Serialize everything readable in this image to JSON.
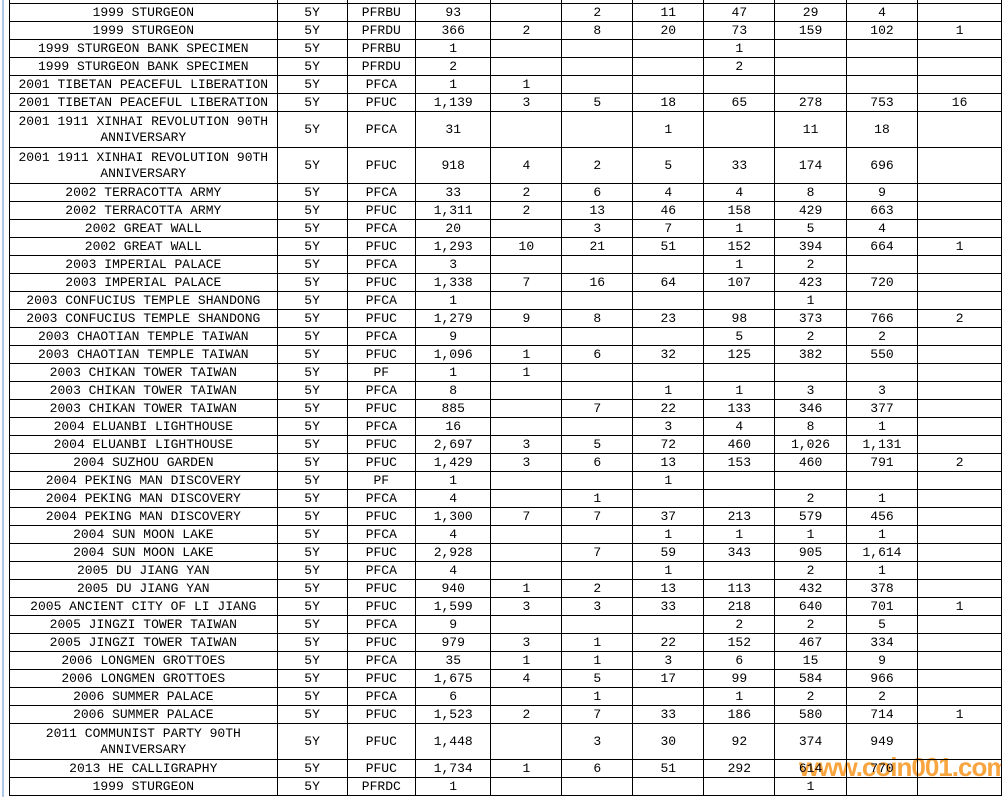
{
  "sheet": {
    "background": "#ffffff",
    "table_border_color": "#000000",
    "gridline_color": "#aec6e8",
    "text_color": "#000000"
  },
  "watermark": {
    "text": "www.coin001.com",
    "color": "#f7941d"
  },
  "table": {
    "rows": [
      {
        "name": "1999 STURGEON",
        "denom": "5Y",
        "grade": "PFRBU",
        "cells": [
          "93",
          "",
          "2",
          "11",
          "47",
          "29",
          "4",
          ""
        ]
      },
      {
        "name": "1999 STURGEON",
        "denom": "5Y",
        "grade": "PFRDU",
        "cells": [
          "366",
          "2",
          "8",
          "20",
          "73",
          "159",
          "102",
          "1"
        ]
      },
      {
        "name": "1999 STURGEON BANK SPECIMEN",
        "denom": "5Y",
        "grade": "PFRBU",
        "cells": [
          "1",
          "",
          "",
          "",
          "1",
          "",
          "",
          ""
        ]
      },
      {
        "name": "1999 STURGEON BANK SPECIMEN",
        "denom": "5Y",
        "grade": "PFRDU",
        "cells": [
          "2",
          "",
          "",
          "",
          "2",
          "",
          "",
          ""
        ]
      },
      {
        "name": "2001 TIBETAN PEACEFUL LIBERATION",
        "denom": "5Y",
        "grade": "PFCA",
        "cells": [
          "1",
          "1",
          "",
          "",
          "",
          "",
          "",
          ""
        ]
      },
      {
        "name": "2001 TIBETAN PEACEFUL LIBERATION",
        "denom": "5Y",
        "grade": "PFUC",
        "cells": [
          "1,139",
          "3",
          "5",
          "18",
          "65",
          "278",
          "753",
          "16"
        ]
      },
      {
        "name": "2001 1911 XINHAI REVOLUTION 90TH ANNIVERSARY",
        "denom": "5Y",
        "grade": "PFCA",
        "tall": true,
        "cells": [
          "31",
          "",
          "",
          "1",
          "",
          "11",
          "18",
          ""
        ]
      },
      {
        "name": "2001 1911 XINHAI REVOLUTION 90TH ANNIVERSARY",
        "denom": "5Y",
        "grade": "PFUC",
        "tall": true,
        "cells": [
          "918",
          "4",
          "2",
          "5",
          "33",
          "174",
          "696",
          ""
        ]
      },
      {
        "name": "2002 TERRACOTTA ARMY",
        "denom": "5Y",
        "grade": "PFCA",
        "cells": [
          "33",
          "2",
          "6",
          "4",
          "4",
          "8",
          "9",
          ""
        ]
      },
      {
        "name": "2002 TERRACOTTA ARMY",
        "denom": "5Y",
        "grade": "PFUC",
        "cells": [
          "1,311",
          "2",
          "13",
          "46",
          "158",
          "429",
          "663",
          ""
        ]
      },
      {
        "name": "2002 GREAT WALL",
        "denom": "5Y",
        "grade": "PFCA",
        "cells": [
          "20",
          "",
          "3",
          "7",
          "1",
          "5",
          "4",
          ""
        ]
      },
      {
        "name": "2002 GREAT WALL",
        "denom": "5Y",
        "grade": "PFUC",
        "cells": [
          "1,293",
          "10",
          "21",
          "51",
          "152",
          "394",
          "664",
          "1"
        ]
      },
      {
        "name": "2003 IMPERIAL PALACE",
        "denom": "5Y",
        "grade": "PFCA",
        "cells": [
          "3",
          "",
          "",
          "",
          "1",
          "2",
          "",
          ""
        ]
      },
      {
        "name": "2003 IMPERIAL PALACE",
        "denom": "5Y",
        "grade": "PFUC",
        "cells": [
          "1,338",
          "7",
          "16",
          "64",
          "107",
          "423",
          "720",
          ""
        ]
      },
      {
        "name": "2003 CONFUCIUS TEMPLE SHANDONG",
        "denom": "5Y",
        "grade": "PFCA",
        "cells": [
          "1",
          "",
          "",
          "",
          "",
          "1",
          "",
          ""
        ]
      },
      {
        "name": "2003 CONFUCIUS TEMPLE SHANDONG",
        "denom": "5Y",
        "grade": "PFUC",
        "cells": [
          "1,279",
          "9",
          "8",
          "23",
          "98",
          "373",
          "766",
          "2"
        ]
      },
      {
        "name": "2003 CHAOTIAN TEMPLE TAIWAN",
        "denom": "5Y",
        "grade": "PFCA",
        "cells": [
          "9",
          "",
          "",
          "",
          "5",
          "2",
          "2",
          ""
        ]
      },
      {
        "name": "2003 CHAOTIAN TEMPLE TAIWAN",
        "denom": "5Y",
        "grade": "PFUC",
        "cells": [
          "1,096",
          "1",
          "6",
          "32",
          "125",
          "382",
          "550",
          ""
        ]
      },
      {
        "name": "2003 CHIKAN TOWER TAIWAN",
        "denom": "5Y",
        "grade": "PF",
        "cells": [
          "1",
          "1",
          "",
          "",
          "",
          "",
          "",
          ""
        ]
      },
      {
        "name": "2003 CHIKAN TOWER TAIWAN",
        "denom": "5Y",
        "grade": "PFCA",
        "cells": [
          "8",
          "",
          "",
          "1",
          "1",
          "3",
          "3",
          ""
        ]
      },
      {
        "name": "2003 CHIKAN TOWER TAIWAN",
        "denom": "5Y",
        "grade": "PFUC",
        "cells": [
          "885",
          "",
          "7",
          "22",
          "133",
          "346",
          "377",
          ""
        ]
      },
      {
        "name": "2004 ELUANBI LIGHTHOUSE",
        "denom": "5Y",
        "grade": "PFCA",
        "cells": [
          "16",
          "",
          "",
          "3",
          "4",
          "8",
          "1",
          ""
        ]
      },
      {
        "name": "2004 ELUANBI LIGHTHOUSE",
        "denom": "5Y",
        "grade": "PFUC",
        "cells": [
          "2,697",
          "3",
          "5",
          "72",
          "460",
          "1,026",
          "1,131",
          ""
        ]
      },
      {
        "name": "2004 SUZHOU GARDEN",
        "denom": "5Y",
        "grade": "PFUC",
        "cells": [
          "1,429",
          "3",
          "6",
          "13",
          "153",
          "460",
          "791",
          "2"
        ]
      },
      {
        "name": "2004 PEKING MAN DISCOVERY",
        "denom": "5Y",
        "grade": "PF",
        "cells": [
          "1",
          "",
          "",
          "1",
          "",
          "",
          "",
          ""
        ]
      },
      {
        "name": "2004 PEKING MAN DISCOVERY",
        "denom": "5Y",
        "grade": "PFCA",
        "cells": [
          "4",
          "",
          "1",
          "",
          "",
          "2",
          "1",
          ""
        ]
      },
      {
        "name": "2004 PEKING MAN DISCOVERY",
        "denom": "5Y",
        "grade": "PFUC",
        "cells": [
          "1,300",
          "7",
          "7",
          "37",
          "213",
          "579",
          "456",
          ""
        ]
      },
      {
        "name": "2004 SUN MOON LAKE",
        "denom": "5Y",
        "grade": "PFCA",
        "cells": [
          "4",
          "",
          "",
          "1",
          "1",
          "1",
          "1",
          ""
        ]
      },
      {
        "name": "2004 SUN MOON LAKE",
        "denom": "5Y",
        "grade": "PFUC",
        "cells": [
          "2,928",
          "",
          "7",
          "59",
          "343",
          "905",
          "1,614",
          ""
        ]
      },
      {
        "name": "2005 DU JIANG YAN",
        "denom": "5Y",
        "grade": "PFCA",
        "cells": [
          "4",
          "",
          "",
          "1",
          "",
          "2",
          "1",
          ""
        ]
      },
      {
        "name": "2005 DU JIANG YAN",
        "denom": "5Y",
        "grade": "PFUC",
        "cells": [
          "940",
          "1",
          "2",
          "13",
          "113",
          "432",
          "378",
          ""
        ]
      },
      {
        "name": "2005 ANCIENT CITY OF LI JIANG",
        "denom": "5Y",
        "grade": "PFUC",
        "cells": [
          "1,599",
          "3",
          "3",
          "33",
          "218",
          "640",
          "701",
          "1"
        ]
      },
      {
        "name": "2005 JINGZI TOWER TAIWAN",
        "denom": "5Y",
        "grade": "PFCA",
        "cells": [
          "9",
          "",
          "",
          "",
          "2",
          "2",
          "5",
          ""
        ]
      },
      {
        "name": "2005 JINGZI TOWER TAIWAN",
        "denom": "5Y",
        "grade": "PFUC",
        "cells": [
          "979",
          "3",
          "1",
          "22",
          "152",
          "467",
          "334",
          ""
        ]
      },
      {
        "name": "2006 LONGMEN GROTTOES",
        "denom": "5Y",
        "grade": "PFCA",
        "cells": [
          "35",
          "1",
          "1",
          "3",
          "6",
          "15",
          "9",
          ""
        ]
      },
      {
        "name": "2006 LONGMEN GROTTOES",
        "denom": "5Y",
        "grade": "PFUC",
        "cells": [
          "1,675",
          "4",
          "5",
          "17",
          "99",
          "584",
          "966",
          ""
        ]
      },
      {
        "name": "2006 SUMMER PALACE",
        "denom": "5Y",
        "grade": "PFCA",
        "cells": [
          "6",
          "",
          "1",
          "",
          "1",
          "2",
          "2",
          ""
        ]
      },
      {
        "name": "2006 SUMMER PALACE",
        "denom": "5Y",
        "grade": "PFUC",
        "cells": [
          "1,523",
          "2",
          "7",
          "33",
          "186",
          "580",
          "714",
          "1"
        ]
      },
      {
        "name": "2011 COMMUNIST PARTY 90TH ANNIVERSARY",
        "denom": "5Y",
        "grade": "PFUC",
        "tall": true,
        "cells": [
          "1,448",
          "",
          "3",
          "30",
          "92",
          "374",
          "949",
          ""
        ]
      },
      {
        "name": "2013 HE CALLIGRAPHY",
        "denom": "5Y",
        "grade": "PFUC",
        "cells": [
          "1,734",
          "1",
          "6",
          "51",
          "292",
          "614",
          "770",
          ""
        ]
      },
      {
        "name": "1999 STURGEON",
        "denom": "5Y",
        "grade": "PFRDC",
        "cells": [
          "1",
          "",
          "",
          "",
          "",
          "1",
          "",
          ""
        ]
      }
    ]
  }
}
